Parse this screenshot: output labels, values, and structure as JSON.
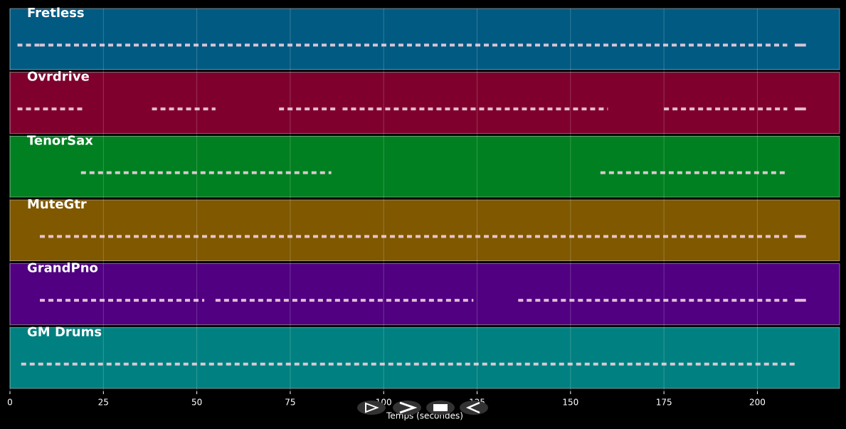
{
  "chart_data": {
    "type": "pianoroll",
    "xlabel": "Temps (secondes)",
    "xlim": [
      0,
      222
    ],
    "xticks": [
      0,
      25,
      50,
      75,
      100,
      125,
      150,
      175,
      200
    ],
    "grid": true,
    "tracks": [
      {
        "name": "Fretless",
        "color": "#005a82",
        "notes": [
          [
            2,
            8
          ],
          [
            8,
            208
          ],
          [
            210,
            213
          ]
        ]
      },
      {
        "name": "Ovrdrive",
        "color": "#7f002d",
        "notes": [
          [
            2,
            20
          ],
          [
            38,
            55
          ],
          [
            72,
            88
          ],
          [
            89,
            160
          ],
          [
            175,
            208
          ],
          [
            210,
            213
          ]
        ]
      },
      {
        "name": "TenorSax",
        "color": "#008020",
        "notes": [
          [
            19,
            86
          ],
          [
            158,
            208
          ]
        ]
      },
      {
        "name": "MuteGtr",
        "color": "#805800",
        "notes": [
          [
            8,
            208
          ],
          [
            210,
            213
          ]
        ]
      },
      {
        "name": "GrandPno",
        "color": "#500080",
        "notes": [
          [
            8,
            52
          ],
          [
            55,
            124
          ],
          [
            136,
            208
          ],
          [
            210,
            213
          ]
        ]
      },
      {
        "name": "GM Drums",
        "color": "#008080",
        "notes": [
          [
            3,
            210
          ]
        ]
      }
    ]
  }
}
